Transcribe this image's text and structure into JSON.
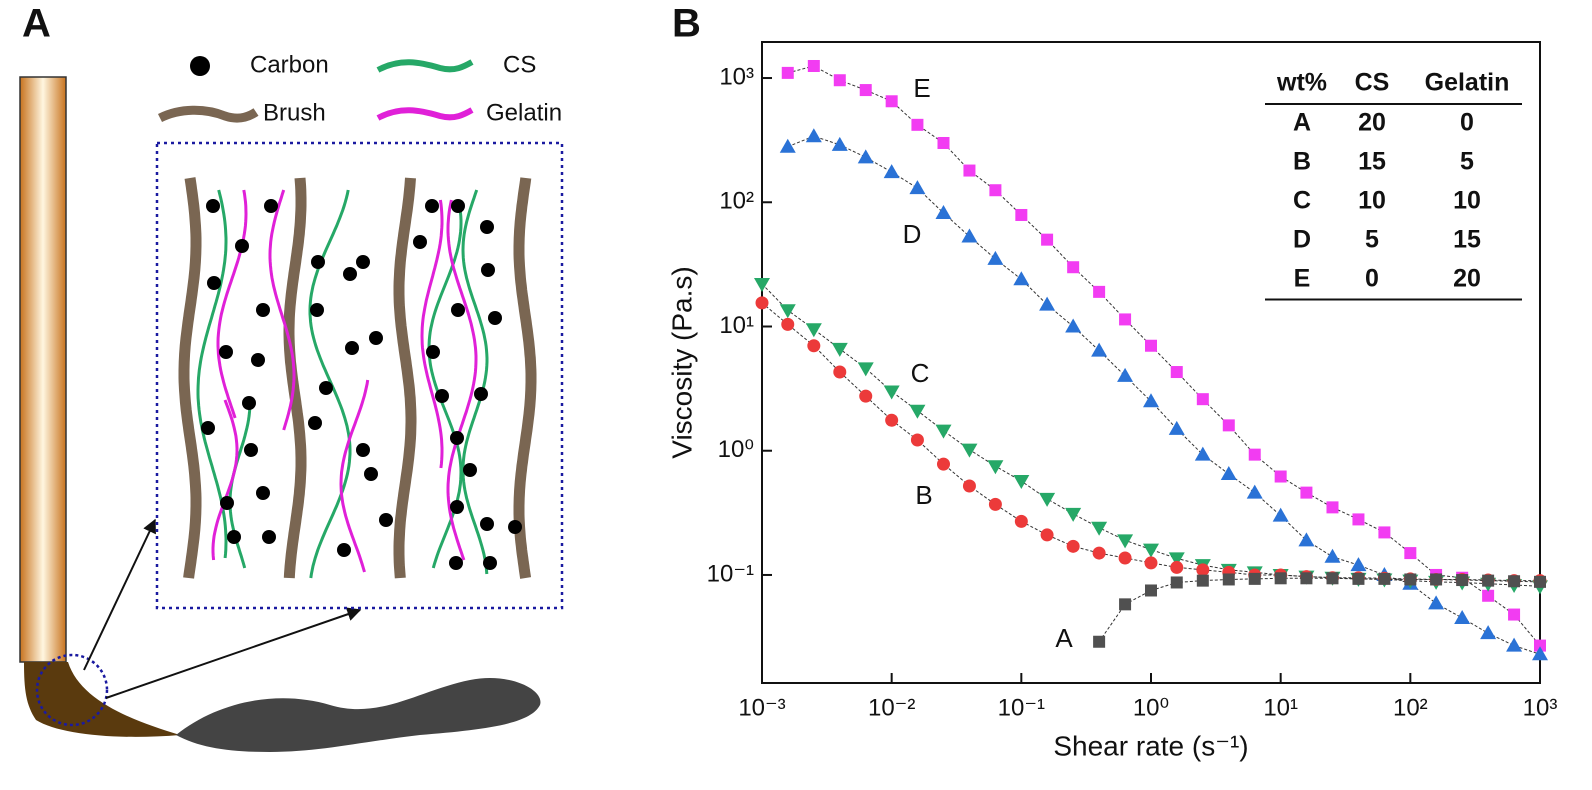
{
  "panel_a": {
    "label": "A",
    "legend": [
      "Carbon",
      "CS",
      "Brush",
      "Gelatin"
    ]
  },
  "chart_data": {
    "type": "line",
    "panel_label": "B",
    "xlabel": "Shear rate (s⁻¹)",
    "ylabel": "Viscosity (Pa.s)",
    "xscale": "log",
    "yscale": "log",
    "xlim": [
      0.001,
      1000
    ],
    "ylim": [
      0.0135,
      1950
    ],
    "xticks": [
      {
        "value": 0.001,
        "label": "10⁻³"
      },
      {
        "value": 0.01,
        "label": "10⁻²"
      },
      {
        "value": 0.1,
        "label": "10⁻¹"
      },
      {
        "value": 1,
        "label": "10⁰"
      },
      {
        "value": 10,
        "label": "10¹"
      },
      {
        "value": 100,
        "label": "10²"
      },
      {
        "value": 1000,
        "label": "10³"
      }
    ],
    "yticks": [
      {
        "value": 0.1,
        "label": "10⁻¹"
      },
      {
        "value": 1,
        "label": "10⁰"
      },
      {
        "value": 10,
        "label": "10¹"
      },
      {
        "value": 100,
        "label": "10²"
      },
      {
        "value": 1000,
        "label": "10³"
      }
    ],
    "x": [
      0.001,
      0.00158,
      0.00251,
      0.00398,
      0.00631,
      0.01,
      0.0158,
      0.0251,
      0.0398,
      0.0631,
      0.1,
      0.158,
      0.251,
      0.398,
      0.631,
      1,
      1.58,
      2.51,
      3.98,
      6.31,
      10,
      15.8,
      25.1,
      39.8,
      63.1,
      100,
      158,
      251,
      398,
      631,
      1000
    ],
    "series": [
      {
        "name": "E",
        "color": "#f23cf2",
        "marker": "square",
        "values": [
          null,
          1100,
          1250,
          960,
          800,
          650,
          420,
          300,
          180,
          125,
          79,
          50,
          30,
          19,
          11.4,
          7,
          4.3,
          2.6,
          1.6,
          0.93,
          0.62,
          0.46,
          0.35,
          0.28,
          0.22,
          0.15,
          0.1,
          0.095,
          0.068,
          0.048,
          0.027
        ]
      },
      {
        "name": "D",
        "color": "#2a72d6",
        "marker": "triangle-up",
        "values": [
          null,
          280,
          340,
          290,
          230,
          175,
          130,
          82,
          53,
          35,
          24,
          15,
          10,
          6.4,
          4,
          2.5,
          1.5,
          0.93,
          0.65,
          0.46,
          0.3,
          0.19,
          0.14,
          0.12,
          0.1,
          0.085,
          0.059,
          0.045,
          0.034,
          0.027,
          0.023
        ]
      },
      {
        "name": "C",
        "color": "#26a867",
        "marker": "triangle-down",
        "values": [
          22,
          13.5,
          9.5,
          6.6,
          4.6,
          3,
          2.1,
          1.45,
          1.02,
          0.75,
          0.57,
          0.41,
          0.31,
          0.24,
          0.19,
          0.16,
          0.136,
          0.12,
          0.11,
          0.105,
          0.1,
          0.097,
          0.095,
          0.093,
          0.092,
          0.09,
          0.088,
          0.087,
          0.085,
          0.083,
          0.081
        ]
      },
      {
        "name": "B",
        "color": "#ec3a3a",
        "marker": "circle",
        "values": [
          15.5,
          10.4,
          7,
          4.3,
          2.75,
          1.76,
          1.22,
          0.78,
          0.52,
          0.37,
          0.27,
          0.21,
          0.17,
          0.15,
          0.137,
          0.125,
          0.115,
          0.11,
          0.105,
          0.1,
          0.1,
          0.097,
          0.095,
          0.095,
          0.094,
          0.093,
          0.092,
          0.092,
          0.091,
          0.09,
          0.09
        ]
      },
      {
        "name": "A",
        "color": "#505050",
        "marker": "square",
        "values": [
          null,
          null,
          null,
          null,
          null,
          null,
          null,
          null,
          null,
          null,
          null,
          null,
          null,
          0.029,
          0.058,
          0.075,
          0.087,
          0.09,
          0.092,
          0.093,
          0.094,
          0.094,
          0.094,
          0.093,
          0.093,
          0.092,
          0.092,
          0.091,
          0.09,
          0.089,
          0.088
        ]
      }
    ],
    "table": {
      "header": [
        "wt%",
        "CS",
        "Gelatin"
      ],
      "rows": [
        [
          "A",
          20,
          0
        ],
        [
          "B",
          15,
          5
        ],
        [
          "C",
          10,
          10
        ],
        [
          "D",
          5,
          15
        ],
        [
          "E",
          0,
          20
        ]
      ]
    }
  }
}
